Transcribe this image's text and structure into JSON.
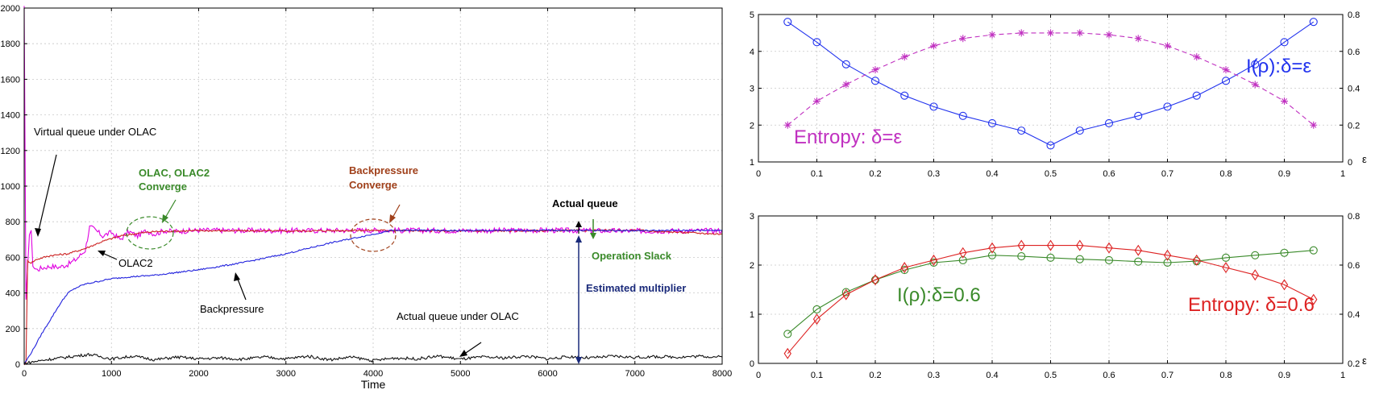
{
  "chart_data": [
    {
      "type": "line",
      "xlabel": "Time",
      "ylabel": "",
      "xlim": [
        0,
        8000
      ],
      "ylim": [
        0,
        2000
      ],
      "xticks": [
        0,
        1000,
        2000,
        3000,
        4000,
        5000,
        6000,
        7000,
        8000
      ],
      "yticks": [
        0,
        200,
        400,
        600,
        800,
        1000,
        1200,
        1400,
        1600,
        1800,
        2000
      ],
      "grid": true,
      "series": [
        {
          "name": "Virtual queue under OLAC",
          "color": "#e000e0",
          "x": [
            0,
            20,
            40,
            60,
            80,
            100,
            120,
            150,
            200,
            300,
            400,
            500,
            600,
            700,
            750,
            800,
            900,
            1000,
            1100,
            1200,
            1300,
            1400,
            1500,
            1600,
            1700,
            2000,
            3000,
            4000,
            5000,
            6000,
            7000,
            8000
          ],
          "y": [
            2000,
            350,
            560,
            730,
            740,
            560,
            540,
            530,
            540,
            550,
            545,
            560,
            590,
            640,
            770,
            760,
            720,
            740,
            700,
            745,
            720,
            750,
            730,
            750,
            745,
            752,
            750,
            752,
            750,
            752,
            748,
            750
          ]
        },
        {
          "name": "OLAC2",
          "color": "#cc2222",
          "x": [
            0,
            20,
            40,
            80,
            150,
            300,
            500,
            700,
            900,
            1100,
            1300,
            1500,
            2000,
            3000,
            4000,
            5000,
            6000,
            7000,
            8000
          ],
          "y": [
            0,
            0,
            580,
            570,
            590,
            610,
            620,
            650,
            690,
            720,
            735,
            745,
            750,
            748,
            752,
            748,
            750,
            752,
            730
          ]
        },
        {
          "name": "Backpressure",
          "color": "#2222dd",
          "x": [
            0,
            100,
            200,
            300,
            400,
            500,
            600,
            700,
            800,
            1000,
            1200,
            1500,
            2000,
            2500,
            3000,
            3500,
            3800,
            4000,
            4200,
            4500,
            5000,
            6000,
            7000,
            8000
          ],
          "y": [
            0,
            80,
            170,
            250,
            330,
            400,
            430,
            450,
            460,
            480,
            490,
            500,
            530,
            570,
            620,
            680,
            710,
            730,
            750,
            752,
            750,
            752,
            750,
            752
          ]
        },
        {
          "name": "Actual queue under OLAC",
          "color": "#111111",
          "x": [
            0,
            250,
            500,
            750,
            1000,
            1250,
            1500,
            1750,
            2000,
            2250,
            2500,
            2750,
            3000,
            3250,
            3500,
            3750,
            4000,
            4250,
            4500,
            4750,
            5000,
            5250,
            5500,
            5750,
            6000,
            6250,
            6500,
            6750,
            7000,
            7250,
            7500,
            7750,
            8000
          ],
          "y": [
            5,
            25,
            40,
            55,
            30,
            45,
            25,
            40,
            30,
            35,
            28,
            40,
            30,
            45,
            25,
            40,
            20,
            35,
            30,
            45,
            28,
            40,
            35,
            45,
            30,
            42,
            35,
            45,
            38,
            42,
            40,
            45,
            40
          ]
        }
      ],
      "annotations": [
        "Virtual queue under OLAC",
        "OLAC, OLAC2",
        "Converge",
        "OLAC2",
        "Backpressure",
        "Backpressure",
        "Converge",
        "Actual queue",
        "Operation Slack",
        "Estimated multiplier",
        "Actual queue under OLAC"
      ]
    },
    {
      "type": "line",
      "xlabel": "",
      "ylabel": "",
      "y2label": "ε",
      "xlim": [
        0,
        1
      ],
      "ylim": [
        1,
        5
      ],
      "y2lim": [
        0,
        0.8
      ],
      "xticks": [
        0,
        0.1,
        0.2,
        0.3,
        0.4,
        0.5,
        0.6,
        0.7,
        0.8,
        0.9,
        1
      ],
      "yticks": [
        1,
        2,
        3,
        4,
        5
      ],
      "y2ticks": [
        0,
        0.2,
        0.4,
        0.6,
        0.8
      ],
      "grid": true,
      "series": [
        {
          "name": "I(ρ):δ=ε",
          "color": "#2233ee",
          "axis": "left",
          "marker": "circle",
          "x": [
            0.05,
            0.1,
            0.15,
            0.2,
            0.25,
            0.3,
            0.35,
            0.4,
            0.45,
            0.5,
            0.55,
            0.6,
            0.65,
            0.7,
            0.75,
            0.8,
            0.85,
            0.9,
            0.95
          ],
          "y": [
            4.8,
            4.25,
            3.65,
            3.2,
            2.8,
            2.5,
            2.25,
            2.05,
            1.85,
            1.45,
            1.85,
            2.05,
            2.25,
            2.5,
            2.8,
            3.2,
            3.65,
            4.25,
            4.8
          ]
        },
        {
          "name": "Entropy: δ=ε",
          "color": "#c030c0",
          "axis": "right",
          "marker": "star",
          "x": [
            0.05,
            0.1,
            0.15,
            0.2,
            0.25,
            0.3,
            0.35,
            0.4,
            0.45,
            0.5,
            0.55,
            0.6,
            0.65,
            0.7,
            0.75,
            0.8,
            0.85,
            0.9,
            0.95
          ],
          "y": [
            0.2,
            0.33,
            0.42,
            0.5,
            0.57,
            0.63,
            0.67,
            0.69,
            0.7,
            0.7,
            0.7,
            0.69,
            0.67,
            0.63,
            0.57,
            0.5,
            0.42,
            0.33,
            0.2
          ]
        }
      ],
      "annotations": [
        "Entropy: δ=ε",
        "I(ρ):δ=ε"
      ]
    },
    {
      "type": "line",
      "xlabel": "",
      "ylabel": "",
      "y2label": "ε",
      "xlim": [
        0,
        1
      ],
      "ylim": [
        0,
        3
      ],
      "y2lim": [
        0.2,
        0.8
      ],
      "xticks": [
        0,
        0.1,
        0.2,
        0.3,
        0.4,
        0.5,
        0.6,
        0.7,
        0.8,
        0.9,
        1
      ],
      "yticks": [
        0,
        1,
        2,
        3
      ],
      "y2ticks": [
        0.2,
        0.4,
        0.6,
        0.8
      ],
      "grid": true,
      "series": [
        {
          "name": "I(ρ):δ=0.6",
          "color": "#3a8a2a",
          "axis": "left",
          "marker": "circle",
          "x": [
            0.05,
            0.1,
            0.15,
            0.2,
            0.25,
            0.3,
            0.35,
            0.4,
            0.45,
            0.5,
            0.55,
            0.6,
            0.65,
            0.7,
            0.75,
            0.8,
            0.85,
            0.9,
            0.95
          ],
          "y": [
            0.6,
            1.1,
            1.45,
            1.7,
            1.9,
            2.05,
            2.1,
            2.2,
            2.18,
            2.15,
            2.12,
            2.1,
            2.07,
            2.05,
            2.08,
            2.15,
            2.2,
            2.25,
            2.3
          ]
        },
        {
          "name": "Entropy: δ=0.6",
          "color": "#dd2222",
          "axis": "right",
          "marker": "diamond",
          "x": [
            0.05,
            0.1,
            0.15,
            0.2,
            0.25,
            0.3,
            0.35,
            0.4,
            0.45,
            0.5,
            0.55,
            0.6,
            0.65,
            0.7,
            0.75,
            0.8,
            0.85,
            0.9,
            0.95
          ],
          "y": [
            0.24,
            0.38,
            0.48,
            0.54,
            0.59,
            0.62,
            0.65,
            0.67,
            0.68,
            0.68,
            0.68,
            0.67,
            0.66,
            0.64,
            0.62,
            0.59,
            0.56,
            0.52,
            0.46
          ]
        }
      ],
      "annotations": [
        "I(ρ):δ=0.6",
        "Entropy: δ=0.6"
      ]
    }
  ]
}
